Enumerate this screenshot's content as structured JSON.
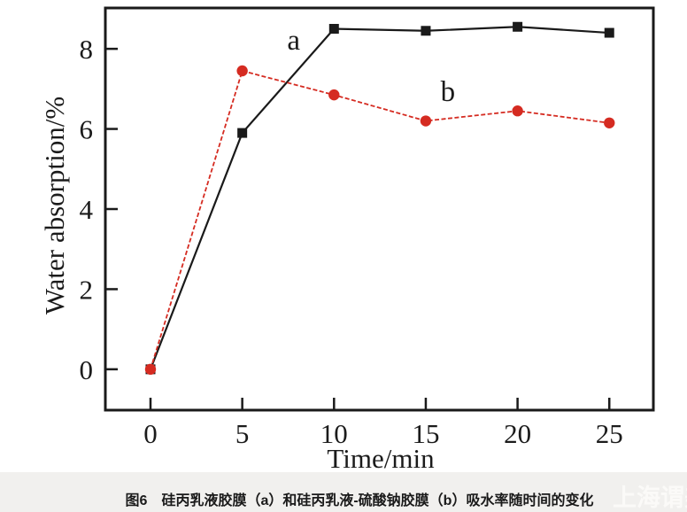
{
  "figure": {
    "caption": "图6　硅丙乳液胶膜（a）和硅丙乳液-硫酸钠胶膜（b）吸水率随时间的变化",
    "watermark": "上海谓美"
  },
  "chart_data": {
    "type": "line",
    "x": [
      0,
      5,
      10,
      15,
      20,
      25
    ],
    "series": [
      {
        "name": "a",
        "marker": "square",
        "color": "#1a1a1a",
        "line_style": "solid",
        "values": [
          0,
          5.9,
          8.5,
          8.45,
          8.55,
          8.4
        ]
      },
      {
        "name": "b",
        "marker": "circle",
        "color": "#d52b21",
        "line_style": "dashed",
        "values": [
          0,
          7.45,
          6.85,
          6.2,
          6.45,
          6.15
        ]
      }
    ],
    "annotations": [
      {
        "text": "a",
        "x": 7.8,
        "y": 8.22
      },
      {
        "text": "b",
        "x": 16.2,
        "y": 6.94
      }
    ],
    "xlabel": "Time/min",
    "ylabel": "Water absorption/%",
    "xticks": [
      0,
      5,
      10,
      15,
      20,
      25
    ],
    "yticks": [
      0,
      2,
      4,
      6,
      8
    ],
    "xlim": [
      -2.46,
      27.4
    ],
    "ylim": [
      -1.02,
      9.02
    ],
    "grid": false,
    "legend": false,
    "frame_color": "#1a1a1a",
    "background": "#ffffff"
  }
}
